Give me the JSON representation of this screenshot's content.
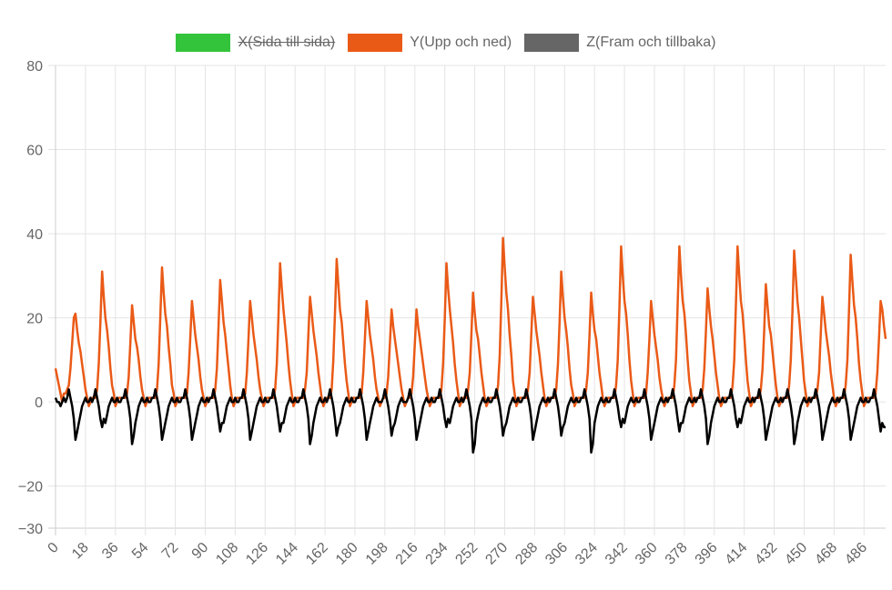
{
  "chart_data": {
    "type": "line",
    "title": "",
    "xlabel": "",
    "ylabel": "",
    "ylim": [
      -30,
      80
    ],
    "y_ticks": [
      80,
      60,
      40,
      20,
      0,
      -20,
      -30
    ],
    "x_range": [
      0,
      499
    ],
    "x_tick_step": 18,
    "x_tick_labels": [
      "0",
      "18",
      "36",
      "54",
      "72",
      "90",
      "108",
      "126",
      "144",
      "162",
      "180",
      "198",
      "216",
      "234",
      "252",
      "270",
      "288",
      "306",
      "324",
      "342",
      "360",
      "378",
      "396",
      "414",
      "432",
      "450",
      "468",
      "486"
    ],
    "grid": true,
    "legend_position": "top",
    "series": [
      {
        "name": "X(Sida till sida)",
        "color": "#33c43c",
        "hidden": true,
        "values": []
      },
      {
        "name": "Y(Upp och ned)",
        "color": "#ea5a17",
        "hidden": false,
        "values": [
          8,
          6,
          4,
          2,
          0,
          2,
          2,
          3,
          4,
          8,
          14,
          20,
          21,
          17,
          14,
          12,
          9,
          6,
          3,
          1,
          -1,
          0,
          1,
          1,
          1,
          3,
          9,
          19,
          31,
          25,
          20,
          17,
          13,
          8,
          4,
          2,
          -1,
          0,
          1,
          1,
          1,
          1,
          1,
          2,
          6,
          14,
          23,
          19,
          15,
          13,
          10,
          6,
          3,
          1,
          -1,
          0,
          1,
          1,
          1,
          1,
          1,
          3,
          9,
          20,
          32,
          26,
          21,
          18,
          13,
          9,
          4,
          2,
          -1,
          0,
          1,
          1,
          1,
          1,
          1,
          2,
          7,
          15,
          24,
          20,
          16,
          13,
          10,
          6,
          3,
          1,
          -1,
          0,
          1,
          1,
          1,
          1,
          3,
          8,
          18,
          29,
          24,
          19,
          16,
          12,
          8,
          4,
          1,
          -1,
          0,
          1,
          1,
          1,
          1,
          1,
          2,
          7,
          15,
          24,
          20,
          16,
          13,
          10,
          6,
          3,
          1,
          -1,
          0,
          1,
          1,
          1,
          1,
          1,
          3,
          9,
          20,
          33,
          27,
          22,
          18,
          14,
          9,
          5,
          2,
          -1,
          0,
          1,
          1,
          1,
          1,
          1,
          3,
          7,
          16,
          25,
          21,
          17,
          14,
          11,
          7,
          4,
          1,
          -1,
          0,
          1,
          1,
          1,
          3,
          10,
          21,
          34,
          28,
          22,
          19,
          14,
          9,
          5,
          2,
          -1,
          0,
          1,
          1,
          1,
          1,
          1,
          2,
          7,
          15,
          24,
          20,
          16,
          13,
          10,
          6,
          3,
          1,
          -1,
          0,
          1,
          1,
          2,
          6,
          14,
          22,
          18,
          15,
          12,
          9,
          6,
          3,
          1,
          -1,
          0,
          1,
          1,
          2,
          6,
          14,
          22,
          18,
          15,
          12,
          9,
          6,
          3,
          1,
          -1,
          0,
          1,
          1,
          1,
          1,
          1,
          3,
          9,
          20,
          33,
          27,
          22,
          18,
          14,
          9,
          5,
          2,
          -1,
          0,
          1,
          1,
          1,
          3,
          7,
          16,
          26,
          21,
          17,
          15,
          11,
          7,
          4,
          1,
          -1,
          0,
          1,
          1,
          1,
          1,
          1,
          4,
          11,
          24,
          39,
          32,
          26,
          22,
          16,
          11,
          5,
          2,
          -1,
          0,
          1,
          1,
          1,
          1,
          1,
          3,
          7,
          16,
          25,
          21,
          17,
          14,
          11,
          7,
          4,
          1,
          -1,
          0,
          1,
          1,
          1,
          1,
          3,
          9,
          19,
          31,
          25,
          20,
          17,
          13,
          8,
          4,
          2,
          -1,
          0,
          1,
          1,
          1,
          1,
          1,
          3,
          7,
          16,
          26,
          21,
          17,
          15,
          11,
          7,
          4,
          1,
          -1,
          0,
          1,
          1,
          1,
          1,
          1,
          4,
          10,
          23,
          37,
          30,
          24,
          21,
          16,
          10,
          5,
          2,
          -1,
          0,
          1,
          1,
          1,
          1,
          1,
          2,
          7,
          15,
          24,
          20,
          16,
          13,
          10,
          6,
          3,
          1,
          -1,
          0,
          1,
          1,
          1,
          1,
          4,
          10,
          23,
          37,
          30,
          24,
          21,
          16,
          10,
          5,
          2,
          -1,
          0,
          1,
          1,
          1,
          1,
          3,
          8,
          17,
          27,
          22,
          18,
          15,
          11,
          7,
          4,
          1,
          -1,
          0,
          1,
          1,
          1,
          1,
          1,
          4,
          10,
          23,
          37,
          30,
          24,
          21,
          16,
          10,
          5,
          2,
          -1,
          0,
          1,
          1,
          1,
          1,
          3,
          8,
          17,
          28,
          23,
          18,
          16,
          12,
          8,
          4,
          1,
          -1,
          0,
          1,
          1,
          1,
          1,
          4,
          10,
          22,
          36,
          30,
          24,
          20,
          15,
          10,
          5,
          2,
          -1,
          0,
          1,
          1,
          1,
          1,
          3,
          7,
          16,
          25,
          21,
          17,
          14,
          11,
          7,
          4,
          1,
          -1,
          0,
          1,
          1,
          1,
          1,
          4,
          10,
          22,
          35,
          29,
          23,
          20,
          15,
          9,
          5,
          2,
          -1,
          0,
          1,
          1,
          1,
          1,
          1,
          2,
          7,
          15,
          24,
          22,
          18,
          15
        ]
      },
      {
        "name": "Z(Fram och tillbaka)",
        "color": "#000000",
        "legend_color": "#666666",
        "hidden": false,
        "values": [
          1,
          0,
          0,
          -1,
          0,
          1,
          0,
          1,
          3,
          1,
          -1,
          -4,
          -9,
          -7,
          -5,
          -3,
          -1,
          0,
          1,
          0,
          0,
          1,
          0,
          1,
          3,
          1,
          -1,
          -4,
          -6,
          -4,
          -5,
          -3,
          -1,
          0,
          1,
          0,
          0,
          1,
          0,
          0,
          1,
          1,
          3,
          1,
          -1,
          -4,
          -10,
          -8,
          -5,
          -3,
          -1,
          0,
          1,
          0,
          0,
          1,
          0,
          0,
          1,
          1,
          3,
          1,
          -1,
          -4,
          -9,
          -7,
          -5,
          -3,
          -1,
          0,
          1,
          0,
          0,
          1,
          0,
          0,
          1,
          1,
          3,
          1,
          -1,
          -4,
          -9,
          -7,
          -5,
          -3,
          -1,
          0,
          1,
          0,
          0,
          1,
          0,
          1,
          1,
          3,
          1,
          -1,
          -4,
          -7,
          -5,
          -5,
          -3,
          -1,
          0,
          1,
          0,
          0,
          1,
          0,
          0,
          1,
          1,
          3,
          1,
          -1,
          -4,
          -9,
          -7,
          -5,
          -3,
          -1,
          0,
          1,
          0,
          0,
          1,
          0,
          0,
          1,
          1,
          3,
          1,
          -1,
          -4,
          -7,
          -5,
          -5,
          -3,
          -1,
          0,
          1,
          0,
          0,
          1,
          0,
          0,
          1,
          1,
          3,
          1,
          -1,
          -4,
          -10,
          -8,
          -5,
          -3,
          -1,
          0,
          1,
          0,
          0,
          1,
          0,
          1,
          3,
          1,
          -1,
          -4,
          -8,
          -6,
          -5,
          -3,
          -1,
          0,
          1,
          0,
          0,
          1,
          0,
          0,
          1,
          1,
          3,
          1,
          -1,
          -4,
          -9,
          -7,
          -5,
          -3,
          -1,
          0,
          1,
          0,
          0,
          0,
          1,
          3,
          1,
          -1,
          -4,
          -8,
          -6,
          -5,
          -3,
          -1,
          0,
          1,
          0,
          0,
          0,
          1,
          3,
          1,
          -1,
          -4,
          -9,
          -7,
          -5,
          -3,
          -1,
          0,
          1,
          0,
          0,
          1,
          0,
          0,
          1,
          1,
          3,
          1,
          -1,
          -4,
          -6,
          -4,
          -5,
          -3,
          -1,
          0,
          1,
          0,
          0,
          1,
          0,
          1,
          3,
          1,
          -1,
          -4,
          -12,
          -10,
          -5,
          -3,
          -1,
          0,
          1,
          0,
          0,
          1,
          0,
          0,
          1,
          1,
          3,
          1,
          -1,
          -4,
          -8,
          -6,
          -5,
          -3,
          -1,
          0,
          1,
          0,
          0,
          1,
          0,
          0,
          1,
          1,
          3,
          1,
          -1,
          -4,
          -9,
          -7,
          -5,
          -3,
          -1,
          0,
          1,
          0,
          0,
          1,
          0,
          1,
          1,
          3,
          1,
          -1,
          -4,
          -8,
          -6,
          -5,
          -3,
          -1,
          0,
          1,
          0,
          0,
          1,
          0,
          0,
          1,
          1,
          3,
          1,
          -1,
          -4,
          -12,
          -10,
          -5,
          -3,
          -1,
          0,
          1,
          0,
          0,
          1,
          0,
          0,
          1,
          1,
          3,
          1,
          -1,
          -4,
          -6,
          -4,
          -5,
          -3,
          -1,
          0,
          1,
          0,
          0,
          1,
          0,
          0,
          1,
          1,
          3,
          1,
          -1,
          -4,
          -9,
          -7,
          -5,
          -3,
          -1,
          0,
          1,
          0,
          0,
          1,
          0,
          1,
          1,
          3,
          1,
          -1,
          -4,
          -7,
          -5,
          -5,
          -3,
          -1,
          0,
          1,
          0,
          0,
          1,
          0,
          1,
          1,
          3,
          1,
          -1,
          -4,
          -10,
          -8,
          -5,
          -3,
          -1,
          0,
          1,
          0,
          0,
          1,
          0,
          0,
          1,
          1,
          3,
          1,
          -1,
          -4,
          -6,
          -4,
          -5,
          -3,
          -1,
          0,
          1,
          0,
          0,
          1,
          0,
          1,
          1,
          3,
          1,
          -1,
          -4,
          -9,
          -7,
          -5,
          -3,
          -1,
          0,
          1,
          0,
          0,
          1,
          0,
          1,
          1,
          3,
          1,
          -1,
          -4,
          -10,
          -8,
          -5,
          -3,
          -1,
          0,
          1,
          0,
          0,
          1,
          0,
          1,
          1,
          3,
          1,
          -1,
          -4,
          -9,
          -7,
          -5,
          -3,
          -1,
          0,
          1,
          0,
          0,
          1,
          0,
          1,
          1,
          3,
          1,
          -1,
          -4,
          -9,
          -7,
          -5,
          -3,
          -1,
          0,
          1,
          0,
          0,
          1,
          0,
          0,
          1,
          1,
          3,
          1,
          -1,
          -4,
          -7,
          -5,
          -6,
          -6
        ]
      }
    ]
  }
}
